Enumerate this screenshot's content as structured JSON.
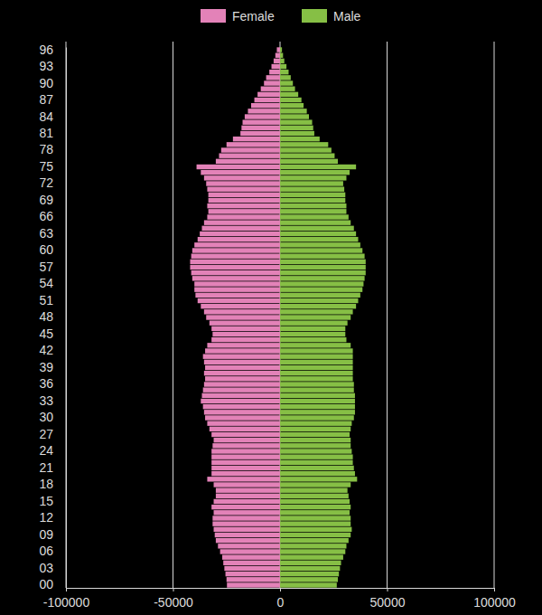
{
  "chart_data": {
    "type": "bar",
    "orientation": "horizontal",
    "grid": true,
    "legend": "top",
    "categories": [
      "00",
      null,
      null,
      "03",
      null,
      null,
      "06",
      null,
      null,
      "09",
      null,
      null,
      "12",
      null,
      null,
      "15",
      null,
      null,
      "18",
      null,
      null,
      "21",
      null,
      null,
      "24",
      null,
      null,
      "27",
      null,
      null,
      "30",
      null,
      null,
      "33",
      null,
      null,
      "36",
      null,
      null,
      "39",
      null,
      null,
      "42",
      null,
      null,
      "45",
      null,
      null,
      "48",
      null,
      null,
      "51",
      null,
      null,
      "54",
      null,
      null,
      "57",
      null,
      null,
      "60",
      null,
      null,
      "63",
      null,
      null,
      "66",
      null,
      null,
      "69",
      null,
      null,
      "72",
      null,
      null,
      "75",
      null,
      null,
      "78",
      null,
      null,
      "81",
      null,
      null,
      "84",
      null,
      null,
      "87",
      null,
      null,
      "90",
      null,
      null,
      "93",
      null,
      null,
      "96"
    ],
    "series": [
      {
        "name": "Female",
        "color": "#e382b8",
        "values": [
          -24800,
          -25000,
          -25500,
          -26000,
          -26500,
          -27000,
          -28000,
          -29000,
          -30000,
          -30500,
          -31000,
          -31500,
          -31500,
          -31000,
          -32000,
          -31000,
          -30000,
          -30000,
          -31000,
          -34000,
          -32000,
          -32000,
          -32000,
          -32000,
          -32000,
          -31500,
          -31000,
          -32000,
          -33000,
          -34000,
          -35000,
          -35500,
          -36000,
          -37000,
          -36500,
          -36000,
          -35500,
          -35000,
          -35500,
          -35000,
          -35500,
          -36000,
          -35000,
          -34000,
          -32000,
          -31500,
          -32000,
          -33000,
          -34500,
          -35500,
          -37000,
          -38500,
          -39500,
          -40000,
          -40000,
          -41000,
          -41500,
          -42000,
          -42000,
          -41500,
          -41000,
          -40000,
          -38500,
          -37500,
          -36500,
          -35500,
          -34000,
          -33500,
          -34000,
          -33500,
          -33500,
          -34000,
          -34500,
          -35500,
          -37000,
          -39000,
          -30000,
          -28500,
          -27500,
          -25000,
          -22000,
          -18500,
          -18000,
          -17500,
          -16500,
          -15000,
          -13500,
          -12000,
          -10500,
          -9000,
          -7500,
          -6500,
          -5000,
          -4000,
          -3000,
          -2200,
          -1500
        ]
      },
      {
        "name": "Male",
        "color": "#86bf45",
        "values": [
          26500,
          27000,
          27500,
          28000,
          28500,
          29500,
          30500,
          31000,
          32000,
          33000,
          33500,
          33000,
          33000,
          32500,
          33000,
          32500,
          32000,
          31500,
          33000,
          36000,
          35000,
          34500,
          34000,
          34000,
          33500,
          33000,
          33000,
          32500,
          33000,
          33500,
          34500,
          35000,
          35000,
          35000,
          35000,
          34500,
          34500,
          34000,
          34000,
          34000,
          34000,
          34000,
          34000,
          33000,
          31000,
          30500,
          30500,
          31500,
          33000,
          34000,
          35500,
          36500,
          37500,
          38500,
          39000,
          39500,
          40000,
          40000,
          40000,
          39500,
          38500,
          37500,
          36500,
          35500,
          34500,
          33000,
          32000,
          31000,
          31000,
          30500,
          30500,
          30000,
          29500,
          31000,
          32500,
          35500,
          27000,
          25500,
          24000,
          22500,
          18500,
          16000,
          15500,
          15000,
          13500,
          12500,
          11000,
          10000,
          8500,
          7000,
          6000,
          5000,
          4000,
          3000,
          2000,
          1400,
          900
        ]
      }
    ],
    "xlim": [
      -100000,
      100000
    ],
    "xticks": [
      -100000,
      -50000,
      0,
      50000,
      100000
    ]
  }
}
